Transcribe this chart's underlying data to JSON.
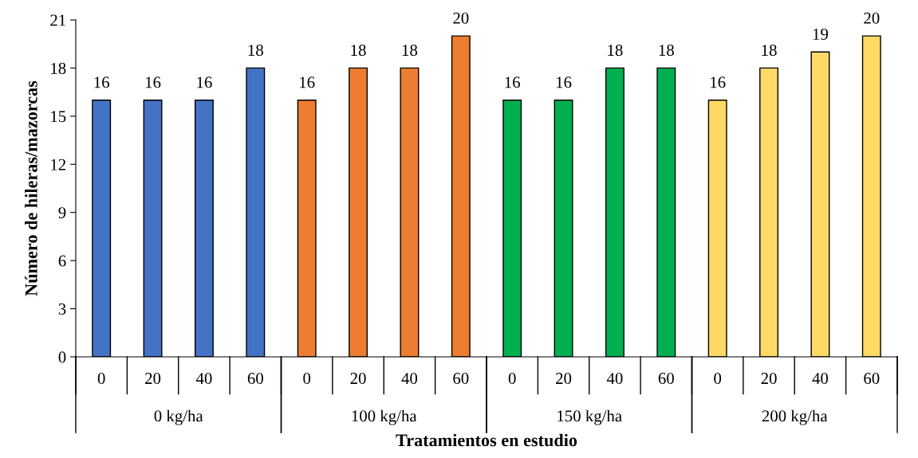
{
  "chart_data": {
    "type": "bar",
    "xlabel": "Tratamientos en estudio",
    "ylabel": "Número de hileras/mazorcas",
    "categories": [
      "0",
      "20",
      "40",
      "60",
      "0",
      "20",
      "40",
      "60",
      "0",
      "20",
      "40",
      "60",
      "0",
      "20",
      "40",
      "60"
    ],
    "series": [
      {
        "color": "#4472c4",
        "values": [
          16,
          16,
          16,
          18,
          null,
          null,
          null,
          null,
          null,
          null,
          null,
          null,
          null,
          null,
          null,
          null
        ]
      },
      {
        "color": "#ed7d31",
        "values": [
          null,
          null,
          null,
          null,
          16,
          18,
          18,
          20,
          null,
          null,
          null,
          null,
          null,
          null,
          null,
          null
        ]
      },
      {
        "color": "#00b050",
        "values": [
          null,
          null,
          null,
          null,
          null,
          null,
          null,
          null,
          16,
          16,
          18,
          18,
          null,
          null,
          null,
          null
        ]
      },
      {
        "color": "#ffd966",
        "values": [
          null,
          null,
          null,
          null,
          null,
          null,
          null,
          null,
          null,
          null,
          null,
          null,
          16,
          18,
          19,
          20
        ]
      }
    ],
    "annotations": [
      "0 kg/ha",
      "100 kg/ha",
      "150 kg/ha",
      "200 kg/ha"
    ],
    "ylim": [
      0,
      21
    ],
    "yticks": [
      0,
      3,
      6,
      9,
      12,
      15,
      18,
      21
    ],
    "data_labels": true,
    "grid": false,
    "legend": false
  }
}
